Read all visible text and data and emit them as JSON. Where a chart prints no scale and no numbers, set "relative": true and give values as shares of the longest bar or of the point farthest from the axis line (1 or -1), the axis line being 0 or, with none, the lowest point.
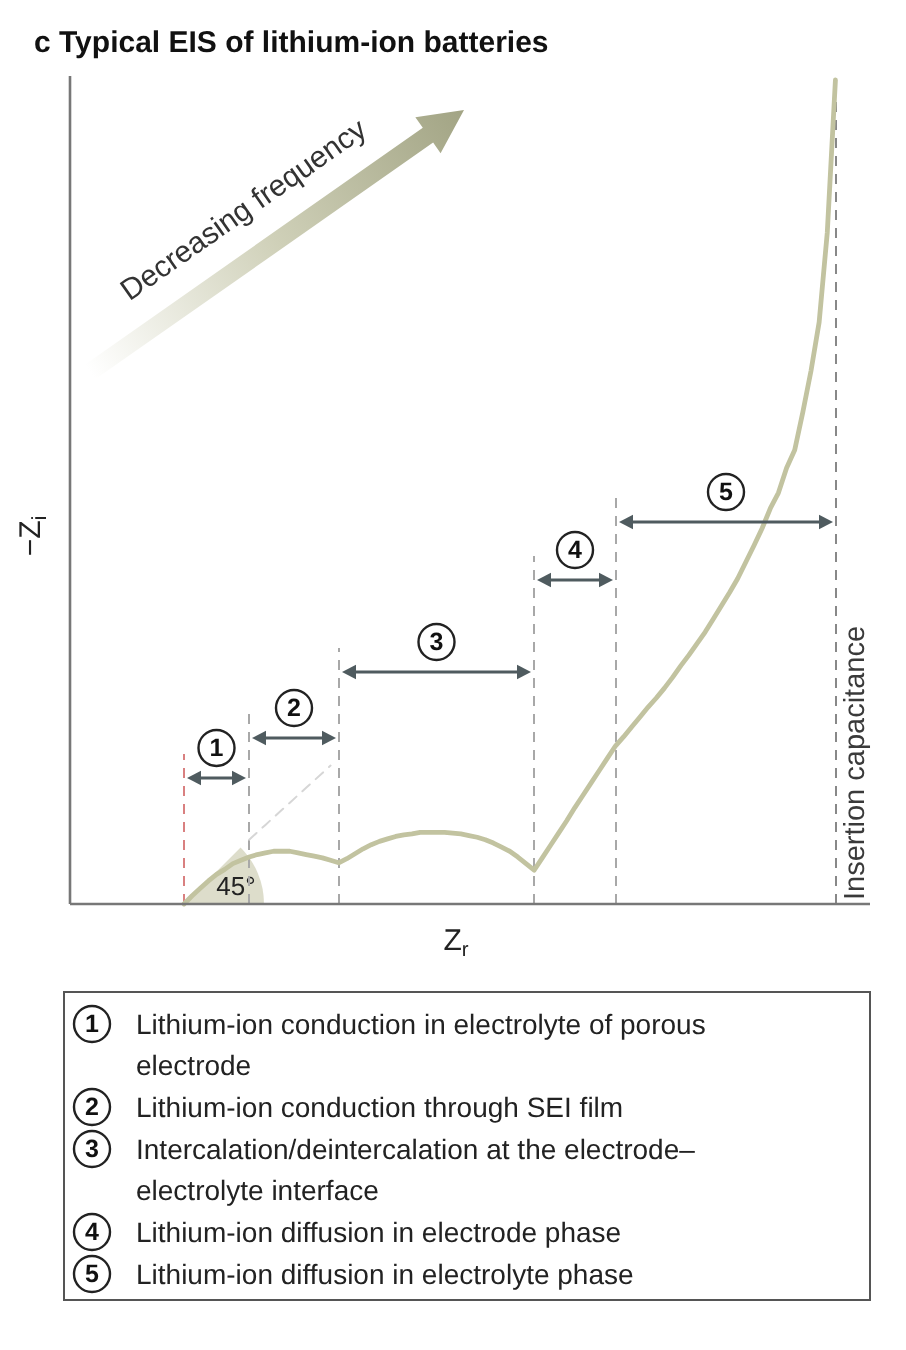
{
  "chart_data": {
    "type": "line",
    "title": "c Typical EIS of lithium-ion batteries",
    "xlabel": "Z$_{r}$",
    "ylabel": "−Z$_{i}$",
    "relative": true,
    "categories": [
      null,
      null,
      null,
      null,
      null,
      null,
      null,
      null,
      null,
      null,
      null,
      null,
      null,
      null,
      null,
      null,
      null,
      null,
      null,
      null,
      null,
      null,
      null,
      null,
      null,
      null,
      null,
      null,
      null,
      null,
      null,
      null,
      null,
      null,
      null,
      null,
      null,
      null,
      null,
      null,
      null,
      null,
      null,
      null,
      null,
      null,
      null,
      null,
      null,
      null,
      null,
      null,
      null,
      null,
      null,
      null,
      null,
      null,
      null,
      null,
      null,
      null,
      null,
      null,
      null,
      null,
      null,
      null,
      null,
      null,
      null,
      null,
      null,
      null,
      null,
      null,
      null,
      null,
      null,
      null,
      null,
      null,
      null,
      null,
      null,
      null,
      null,
      null,
      null,
      null,
      null,
      null,
      null,
      null,
      null,
      null,
      null,
      null,
      null
    ],
    "series": [
      {
        "color": "#c2c3a0",
        "values": [
          null,
          null,
          null,
          null,
          null,
          null,
          null,
          null,
          null,
          null,
          null,
          null,
          null,
          null,
          0,
          0.01,
          0.019,
          0.028,
          0.036,
          0.042,
          0.049,
          0.053,
          0.057,
          0.06,
          0.062,
          0.064,
          0.064,
          0.064,
          0.062,
          0.06,
          0.058,
          0.056,
          0.053,
          0.05,
          0.055,
          0.061,
          0.067,
          0.072,
          0.076,
          0.079,
          0.082,
          0.084,
          0.085,
          0.087,
          0.087,
          0.087,
          0.087,
          0.086,
          0.085,
          0.083,
          0.081,
          0.078,
          0.074,
          0.069,
          0.064,
          0.057,
          0.049,
          0.041,
          0.056,
          0.071,
          0.086,
          0.101,
          0.117,
          0.132,
          0.147,
          0.162,
          0.177,
          0.192,
          0.203,
          0.215,
          0.227,
          0.239,
          0.25,
          0.262,
          0.275,
          0.289,
          0.302,
          0.316,
          0.33,
          0.346,
          0.362,
          0.378,
          0.395,
          0.415,
          0.435,
          0.456,
          0.48,
          0.499,
          0.529,
          0.551,
          0.597,
          0.647,
          0.706,
          0.815,
          1,
          null,
          null,
          null,
          null
        ]
      },
      {
        "color": "#d6d6d6",
        "line_style": "dashed",
        "values": [
          null,
          null,
          null,
          null,
          null,
          null,
          null,
          null,
          null,
          null,
          null,
          null,
          null,
          null,
          null,
          null,
          null,
          null,
          null,
          null,
          null,
          null,
          0.078,
          0.087,
          0.096,
          0.105,
          0.114,
          0.123,
          0.132,
          0.141,
          0.15,
          0.159,
          0.168,
          null,
          null,
          null,
          null,
          null,
          null,
          null,
          null,
          null,
          null,
          null,
          null,
          null,
          null,
          null,
          null,
          null,
          null,
          null,
          null,
          null,
          null,
          null,
          null,
          null,
          null,
          null,
          null,
          null,
          null,
          null,
          null,
          null,
          null,
          null,
          null,
          null,
          null,
          null,
          null,
          null,
          null,
          null,
          null,
          null,
          null,
          null,
          null,
          null,
          null,
          null,
          null,
          null,
          null,
          null,
          null,
          null,
          null,
          null,
          null,
          null,
          null,
          null,
          null,
          null,
          null
        ]
      }
    ],
    "annotations": [
      "Decreasing frequency",
      "45°",
      "1",
      "2",
      "3",
      "4",
      "5",
      "Insertion capacitance",
      "1 Lithium-ion conduction in electrolyte of porous electrode",
      "2 Lithium-ion conduction through SEI film",
      "3 Intercalation/deintercalation at the electrode–electrolyte interface",
      "4 Lithium-ion diffusion in electrode phase",
      "5 Lithium-ion diffusion in electrolyte phase"
    ]
  }
}
